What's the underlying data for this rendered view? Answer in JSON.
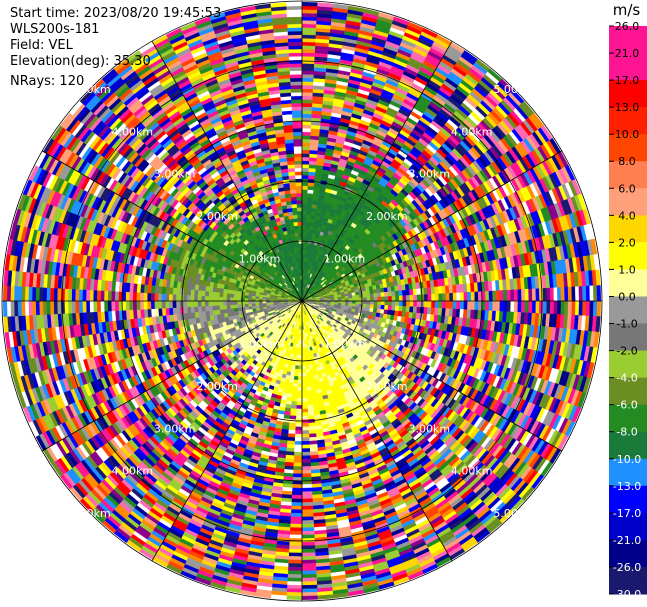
{
  "header": {
    "start_time": "Start time: 2023/08/20 19:45:53",
    "instrument": "WLS200s-181",
    "field": "Field: VEL",
    "elevation": "Elevation(deg): 35.30",
    "nrays": "NRays: 120"
  },
  "colorbar": {
    "unit": "m/s",
    "labels": [
      "26.0",
      "21.0",
      "17.0",
      "13.0",
      "10.0",
      "8.0",
      "6.0",
      "4.0",
      "2.0",
      "1.0",
      "0.0",
      "-1.0",
      "-2.0",
      "-4.0",
      "-6.0",
      "-8.0",
      "-10.0",
      "-13.0",
      "-17.0",
      "-21.0",
      "-26.0",
      "-30.0"
    ],
    "colors": [
      "#ff1493",
      "#ff1493",
      "#ff0000",
      "#ff2000",
      "#ff4500",
      "#ff7f50",
      "#ffa07a",
      "#ffd700",
      "#ffff00",
      "#ffff99",
      "#999999",
      "#777777",
      "#9acd32",
      "#6b8e23",
      "#228b22",
      "#1a7a3a",
      "#1e90ff",
      "#0000ff",
      "#0000cd",
      "#00008b",
      "#191970",
      "#0a0a4a"
    ]
  },
  "chart_data": {
    "type": "heatmap",
    "projection": "polar-ppi",
    "field": "VEL",
    "units": "m/s",
    "n_rays": 120,
    "elevation_deg": 35.3,
    "range_rings_km": [
      1,
      2,
      3,
      4,
      5
    ],
    "range_ring_labels": [
      "1.00km",
      "2.00km",
      "3.00km",
      "4.00km",
      "5.00km"
    ],
    "max_range_km": 5,
    "color_scale_min": -30.0,
    "color_scale_max": 26.0,
    "near_field_pattern": "green (-6 to -4 m/s) toward north, yellow (2 to 4 m/s) toward south, grey near 0 m/s",
    "far_field_pattern": "random noise across full scale",
    "grid": true
  }
}
